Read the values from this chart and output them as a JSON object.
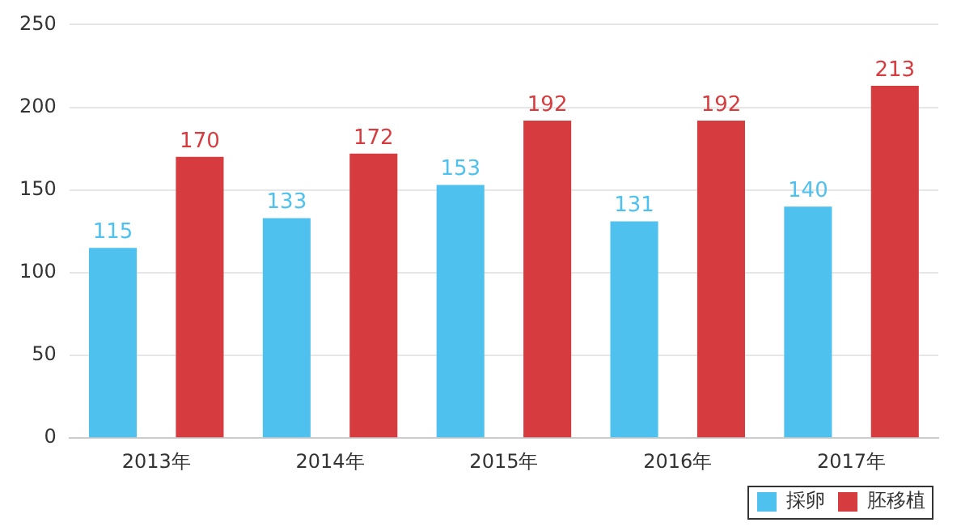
{
  "chart_data": {
    "type": "bar",
    "categories": [
      "2013年",
      "2014年",
      "2015年",
      "2016年",
      "2017年"
    ],
    "series": [
      {
        "name": "採卵",
        "color": "#4fc1ee",
        "values": [
          115,
          133,
          153,
          131,
          140
        ]
      },
      {
        "name": "胚移植",
        "color": "#d63c3f",
        "values": [
          170,
          172,
          192,
          192,
          213
        ]
      }
    ],
    "ylim": [
      0,
      250
    ],
    "yticks": [
      0,
      50,
      100,
      150,
      200,
      250
    ],
    "grid": "y",
    "legend": "bottom right",
    "data_labels": true
  }
}
